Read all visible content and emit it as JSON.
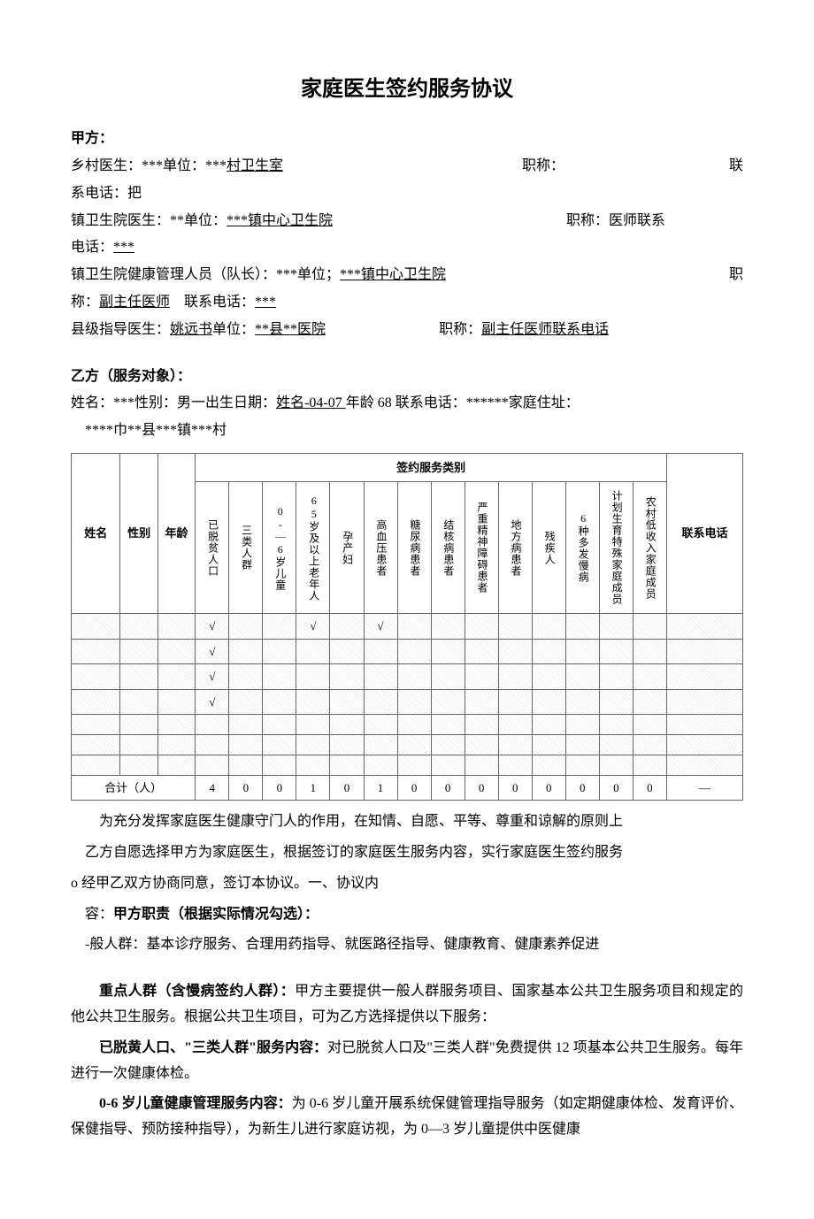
{
  "title": "家庭医生签约服务协议",
  "partyA": {
    "label": "甲方：",
    "village": {
      "role": "乡村医生：",
      "name": "***",
      "unitLabel": "单位：",
      "unitPrefix": "***",
      "unitSuffix": "村卫生室",
      "titleLabel": "职称：",
      "contactLabel": "联",
      "phoneLine": "系电话：把"
    },
    "town": {
      "role": "镇卫生院医生：",
      "name": "**",
      "unitLabel": "单位：",
      "unitPrefix": "***",
      "unitUnderlined": "镇中心卫生院",
      "titleLabel": "职称：医师联系",
      "phoneLine": "电话：",
      "phone": "***"
    },
    "manager": {
      "role": "镇卫生院健康管理人员（队长）：",
      "name": "***",
      "unitLabel": "单位；",
      "unitPrefix": "***",
      "unitUnderlined": "镇中心卫生院",
      "titleLabel": "职",
      "line2a": "称：",
      "line2b": "副主任医师",
      "contactLabel": "联系电话：",
      "phone": "***"
    },
    "county": {
      "role": "县级指导医生：",
      "name": "姚远书",
      "unitLabel": "单位：",
      "unitUnderlined": "**县**医院",
      "titleLabel": "职称：",
      "titleUnderlined": "副主任医师联系电话"
    }
  },
  "partyB": {
    "header": "乙方（服务对象）：",
    "nameLabel": "姓名：",
    "name": "***",
    "sexLabel": "性别：",
    "sex": "男一",
    "dobLabel": "出生日期：",
    "dobUnderlined": "姓名-04-07 ",
    "ageLabel": "年龄 ",
    "age": "68 ",
    "phoneLabel": "联系电话：",
    "phone": "******",
    "addrLabel": "家庭住址：",
    "addr": "****巾**县***镇***村"
  },
  "table": {
    "serviceCatHeader": "签约服务类别",
    "cols": {
      "name": "姓名",
      "sex": "性别",
      "age": "年龄",
      "phone": "联系电话"
    },
    "categories": [
      "已脱贫人口",
      "三类人群",
      "0-｜6岁儿童",
      "65岁及以上老年人",
      "孕产妇",
      "高血压患者",
      "糖尿病患者",
      "结核病患者",
      "严重精神障碍患者",
      "地方病患者",
      "残疾人",
      "6种多发慢病",
      "计划生育特殊家庭成员",
      "农村低收入家庭成员"
    ],
    "checkmark": "√",
    "rows": [
      {
        "checks": [
          true,
          false,
          false,
          true,
          false,
          true,
          false,
          false,
          false,
          false,
          false,
          false,
          false,
          false
        ]
      },
      {
        "checks": [
          true,
          false,
          false,
          false,
          false,
          false,
          false,
          false,
          false,
          false,
          false,
          false,
          false,
          false
        ]
      },
      {
        "checks": [
          true,
          false,
          false,
          false,
          false,
          false,
          false,
          false,
          false,
          false,
          false,
          false,
          false,
          false
        ]
      },
      {
        "checks": [
          true,
          false,
          false,
          false,
          false,
          false,
          false,
          false,
          false,
          false,
          false,
          false,
          false,
          false
        ]
      },
      {
        "checks": [
          false,
          false,
          false,
          false,
          false,
          false,
          false,
          false,
          false,
          false,
          false,
          false,
          false,
          false
        ]
      },
      {
        "checks": [
          false,
          false,
          false,
          false,
          false,
          false,
          false,
          false,
          false,
          false,
          false,
          false,
          false,
          false
        ]
      },
      {
        "checks": [
          false,
          false,
          false,
          false,
          false,
          false,
          false,
          false,
          false,
          false,
          false,
          false,
          false,
          false
        ]
      }
    ],
    "total": {
      "label": "合计（人）",
      "values": [
        "4",
        "0",
        "0",
        "1",
        "0",
        "1",
        "0",
        "0",
        "0",
        "0",
        "0",
        "0",
        "0",
        "0"
      ],
      "phone": "—"
    }
  },
  "body": {
    "p1": "为充分发挥家庭医生健康守门人的作用，在知情、自愿、平等、尊重和谅解的原则上",
    "p2": "乙方自愿选择甲方为家庭医生，根据签订的家庭医生服务内容，实行家庭医生签约服务",
    "p3a": "o 经甲乙双方协商同意，签订本协议。一、协议内",
    "p3b": "容：",
    "p3bBold": "甲方职责（根据实际情况勾选）：",
    "p4a": "-般人群：",
    "p4b": "基本诊疗服务、合理用药指导、就医路径指导、健康教育、健康素养促进",
    "p5a": "重点人群（含慢病签约人群）：",
    "p5b": "甲方主要提供一般人群服务项目、国家基本公共卫生服务项目和规定的他公共卫生服务。根据公共卫生项目，可为乙方选择提供以下服务：",
    "p6a": "已脱黄人口、\"三类人群\"服务内容：",
    "p6b": "对已脱贫人口及\"三类人群\"免费提供 12 项基本公共卫生服务。每年进行一次健康体检。",
    "p7a": "0-6 岁儿童健康管理服务内容：",
    "p7b": "为 0-6 岁儿童开展系统保健管理指导服务（如定期健康体检、发育评价、保健指导、预防接种指导），为新生儿进行家庭访视，为 0—3 岁儿童提供中医健康"
  }
}
